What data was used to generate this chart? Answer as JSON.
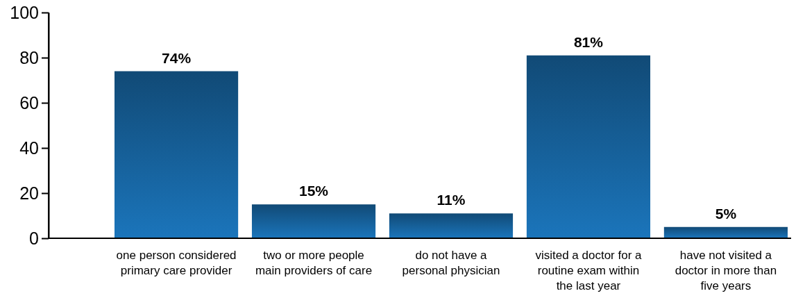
{
  "chart_data": {
    "type": "bar",
    "categories": [
      "one person considered\nprimary care provider",
      "two or more people\nmain providers of care",
      "do not have a\npersonal physician",
      "visited a doctor for a\nroutine exam within\nthe last year",
      "have not visited a\ndoctor in more than\nfive years"
    ],
    "values": [
      74,
      15,
      11,
      81,
      5
    ],
    "value_labels": [
      "74%",
      "15%",
      "11%",
      "81%",
      "5%"
    ],
    "color": "#1b75bb",
    "ylim": [
      0,
      100
    ],
    "yticks": [
      0,
      20,
      40,
      60,
      80,
      100
    ],
    "grid": false
  }
}
